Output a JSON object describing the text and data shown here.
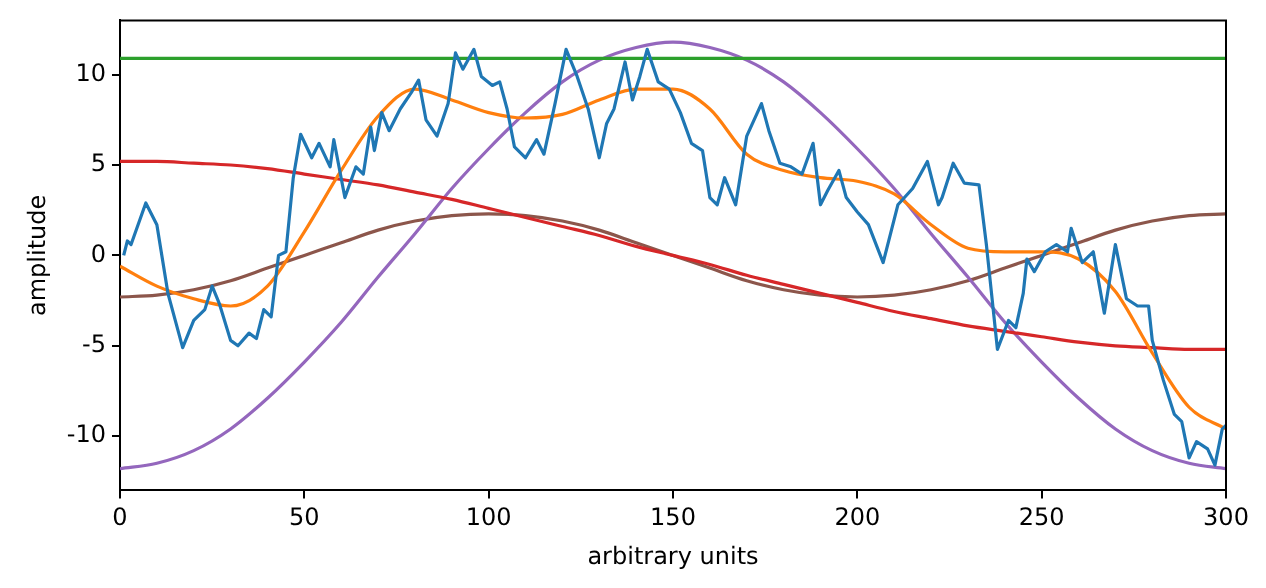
{
  "chart_data": {
    "type": "line",
    "xlabel": "arbitrary units",
    "ylabel": "amplitude",
    "x": [
      0,
      10,
      20,
      30,
      40,
      50,
      60,
      70,
      80,
      90,
      100,
      110,
      120,
      130,
      140,
      150,
      160,
      170,
      180,
      190,
      200,
      210,
      220,
      230,
      240,
      250,
      260,
      270,
      280,
      290,
      300
    ],
    "xlim": [
      0,
      300
    ],
    "xticks": [
      0,
      50,
      100,
      150,
      200,
      250,
      300
    ],
    "ylim": [
      -13,
      13
    ],
    "yticks": [
      -10,
      -5,
      0,
      5,
      10
    ],
    "grid": false,
    "legend": false,
    "marker": "none",
    "line_style": "solid",
    "series": [
      {
        "color": "#1f77b4",
        "x": [
          1,
          2,
          3,
          7,
          10,
          13,
          17,
          20,
          23,
          25,
          27,
          30,
          32,
          35,
          37,
          39,
          41,
          43,
          45,
          47,
          49,
          52,
          54,
          57,
          58,
          61,
          64,
          66,
          68,
          69,
          71,
          73,
          76,
          79,
          81,
          83,
          86,
          89,
          91,
          93,
          96,
          98,
          101,
          103,
          105,
          107,
          110,
          113,
          115,
          118,
          121,
          124,
          127,
          130,
          132,
          134,
          137,
          139,
          141,
          143,
          146,
          149,
          152,
          155,
          158,
          160,
          162,
          164,
          167,
          170,
          174,
          176,
          179,
          182,
          185,
          188,
          190,
          192,
          195,
          197,
          200,
          203,
          207,
          211,
          215,
          219,
          222,
          223,
          226,
          229,
          233,
          235,
          238,
          241,
          243,
          245,
          246,
          248,
          251,
          254,
          257,
          258,
          261,
          264,
          267,
          270,
          273,
          276,
          279,
          280,
          283,
          286,
          288,
          290,
          292,
          295,
          297,
          299,
          300
        ],
        "values": [
          0.0,
          0.8,
          0.6,
          2.9,
          1.7,
          -2.1,
          -5.1,
          -3.6,
          -3.0,
          -1.7,
          -2.7,
          -4.7,
          -5.0,
          -4.3,
          -4.6,
          -3.0,
          -3.4,
          0.0,
          0.2,
          4.3,
          6.7,
          5.4,
          6.2,
          4.9,
          6.4,
          3.2,
          4.9,
          4.5,
          7.1,
          5.8,
          7.9,
          6.9,
          8.1,
          9.0,
          9.7,
          7.5,
          6.6,
          8.4,
          11.2,
          10.3,
          11.4,
          9.9,
          9.4,
          9.6,
          8.1,
          6.0,
          5.4,
          6.4,
          5.6,
          8.4,
          11.4,
          9.9,
          8.1,
          5.4,
          7.3,
          8.1,
          10.7,
          8.6,
          9.9,
          11.4,
          9.6,
          9.2,
          7.9,
          6.2,
          5.8,
          3.2,
          2.8,
          4.3,
          2.8,
          6.6,
          8.4,
          6.9,
          5.1,
          4.9,
          4.5,
          6.2,
          2.8,
          3.6,
          4.7,
          3.2,
          2.4,
          1.7,
          -0.4,
          2.8,
          3.7,
          5.2,
          2.8,
          3.2,
          5.1,
          4.0,
          3.9,
          0.6,
          -5.2,
          -3.6,
          -4.0,
          -2.1,
          -0.2,
          -0.9,
          0.2,
          0.6,
          0.2,
          1.5,
          -0.4,
          0.2,
          -3.2,
          0.6,
          -2.4,
          -2.8,
          -2.8,
          -4.7,
          -6.9,
          -8.8,
          -9.2,
          -11.2,
          -10.3,
          -10.7,
          -11.6,
          -9.6,
          -9.4
        ]
      },
      {
        "color": "#ff7f0e",
        "values": [
          -0.6,
          -1.7,
          -2.4,
          -2.8,
          -1.7,
          1.3,
          4.7,
          7.7,
          9.2,
          8.6,
          7.9,
          7.6,
          7.8,
          8.6,
          9.2,
          9.2,
          8.1,
          5.6,
          4.7,
          4.3,
          4.1,
          3.4,
          1.7,
          0.4,
          0.2,
          0.2,
          -0.2,
          -2.0,
          -5.4,
          -8.4,
          -9.6
        ]
      },
      {
        "color": "#2ca02c",
        "x": [
          0,
          300
        ],
        "values": [
          10.9,
          10.9
        ]
      },
      {
        "color": "#d62728",
        "values": [
          5.2,
          5.2,
          5.1,
          5.0,
          4.8,
          4.5,
          4.2,
          3.9,
          3.5,
          3.1,
          2.6,
          2.1,
          1.6,
          1.1,
          0.5,
          0,
          -0.5,
          -1.1,
          -1.6,
          -2.1,
          -2.6,
          -3.1,
          -3.5,
          -3.9,
          -4.2,
          -4.5,
          -4.8,
          -5.0,
          -5.1,
          -5.2,
          -5.2
        ]
      },
      {
        "color": "#9467bd",
        "values": [
          -11.8,
          -11.5,
          -10.8,
          -9.6,
          -7.9,
          -5.9,
          -3.7,
          -1.2,
          1.2,
          3.7,
          5.9,
          7.9,
          9.6,
          10.8,
          11.5,
          11.8,
          11.5,
          10.8,
          9.6,
          7.9,
          5.9,
          3.7,
          1.2,
          -1.2,
          -3.7,
          -5.9,
          -7.9,
          -9.6,
          -10.8,
          -11.5,
          -11.8
        ]
      },
      {
        "color": "#8c564b",
        "values": [
          -2.3,
          -2.2,
          -1.9,
          -1.4,
          -0.7,
          0,
          0.7,
          1.4,
          1.9,
          2.2,
          2.3,
          2.2,
          1.9,
          1.4,
          0.7,
          0,
          -0.7,
          -1.4,
          -1.9,
          -2.2,
          -2.3,
          -2.2,
          -1.9,
          -1.4,
          -0.7,
          0,
          0.7,
          1.4,
          1.9,
          2.2,
          2.3
        ]
      }
    ]
  }
}
